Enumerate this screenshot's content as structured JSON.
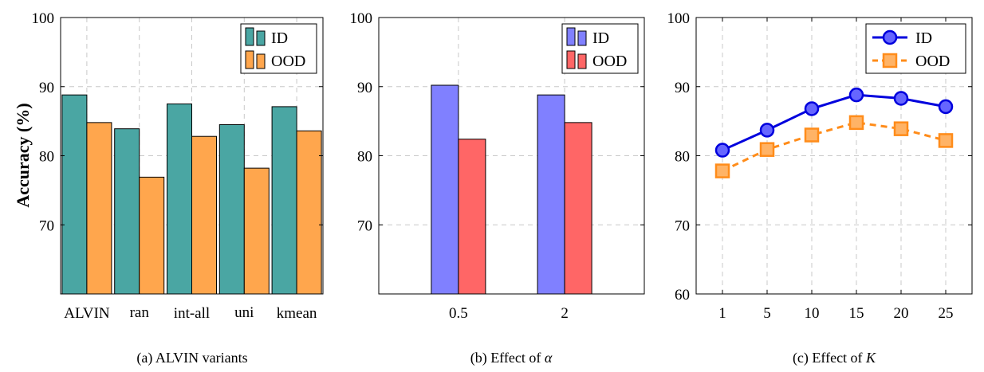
{
  "y_axis_label": "Accuracy (%)",
  "chart_data": [
    {
      "type": "bar",
      "caption": "(a) ALVIN variants",
      "categories": [
        "ALVIN",
        "ran",
        "int-all",
        "uni",
        "kmean"
      ],
      "series": [
        {
          "name": "ID",
          "color": "#4aa6a3",
          "values": [
            88.8,
            83.9,
            87.5,
            84.5,
            87.1
          ]
        },
        {
          "name": "OOD",
          "color": "#ffa64d",
          "values": [
            84.8,
            76.9,
            82.8,
            78.2,
            83.6
          ]
        }
      ],
      "ylim": [
        60,
        100
      ],
      "yticks": [
        70,
        80,
        90,
        100
      ],
      "grid": true,
      "legend": "top-right"
    },
    {
      "type": "bar",
      "caption": "(b) Effect of α",
      "caption_text": "(b) Effect of ",
      "caption_symbol": "α",
      "categories": [
        "0.5",
        "2"
      ],
      "series": [
        {
          "name": "ID",
          "color": "#8080ff",
          "values": [
            90.2,
            88.8
          ]
        },
        {
          "name": "OOD",
          "color": "#ff6666",
          "values": [
            82.4,
            84.8
          ]
        }
      ],
      "ylim": [
        60,
        100
      ],
      "yticks": [
        70,
        80,
        90,
        100
      ],
      "grid": true,
      "legend": "top-right"
    },
    {
      "type": "line",
      "caption": "(c) Effect of K",
      "caption_text": "(c) Effect of ",
      "caption_symbol": "K",
      "x": [
        "1",
        "5",
        "10",
        "15",
        "20",
        "25"
      ],
      "series": [
        {
          "name": "ID",
          "color": "#0000dd",
          "fill": "#6666ff",
          "marker": "circle",
          "dashed": false,
          "values": [
            80.8,
            83.7,
            86.8,
            88.8,
            88.3,
            87.1
          ]
        },
        {
          "name": "OOD",
          "color": "#ff8c1a",
          "fill": "#ffb366",
          "marker": "square",
          "dashed": true,
          "values": [
            77.8,
            80.9,
            83.0,
            84.8,
            83.9,
            82.2
          ]
        }
      ],
      "ylim": [
        60,
        100
      ],
      "yticks": [
        60,
        70,
        80,
        90,
        100
      ],
      "grid": true,
      "legend": "top-right"
    }
  ]
}
